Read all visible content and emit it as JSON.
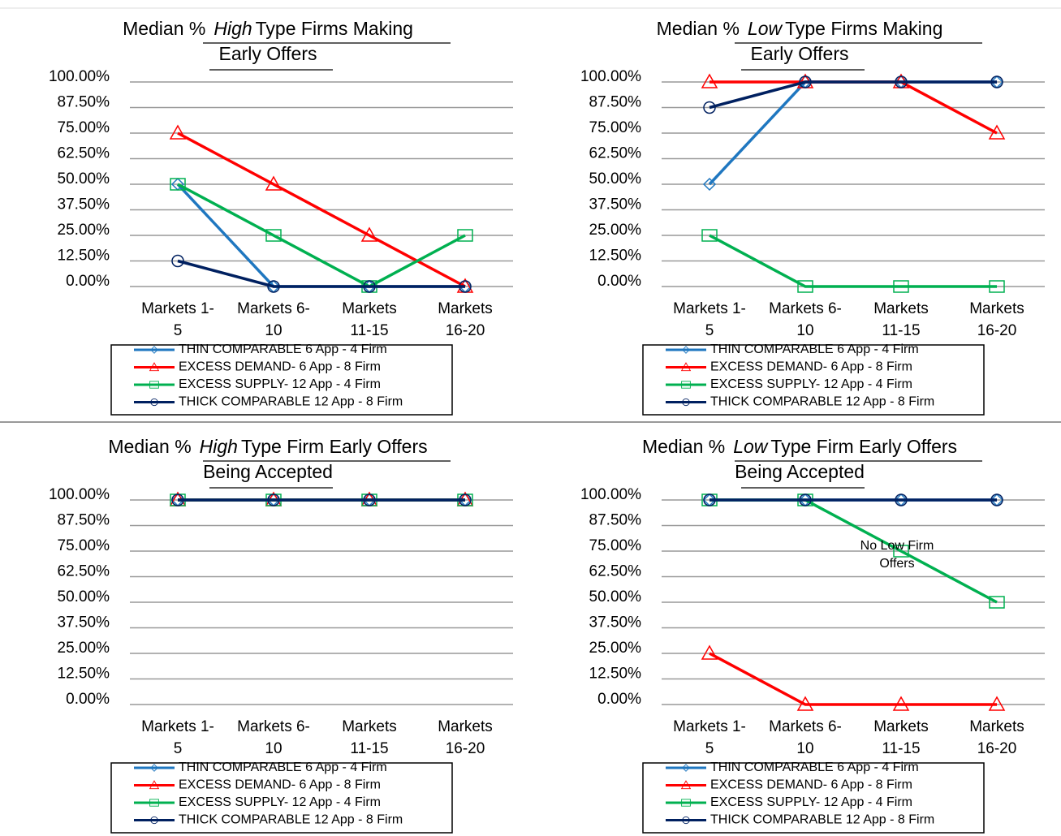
{
  "chart_data": [
    {
      "type": "line",
      "title": {
        "prefix": "Median %",
        "emphasis": "High",
        "rest": "Type  Firms Making",
        "line2": "Early Offers"
      },
      "categories": [
        [
          "Markets 1-",
          "5"
        ],
        [
          "Markets 6-",
          "10"
        ],
        [
          "Markets",
          "11-15"
        ],
        [
          "Markets",
          "16-20"
        ]
      ],
      "ylim": [
        0,
        100
      ],
      "yticks": [
        {
          "value": 0,
          "label": "0.00%"
        },
        {
          "value": 12.5,
          "label": "12.50%"
        },
        {
          "value": 25,
          "label": "25.00%"
        },
        {
          "value": 37.5,
          "label": "37.50%"
        },
        {
          "value": 50,
          "label": "50.00%"
        },
        {
          "value": 62.5,
          "label": "62.50%"
        },
        {
          "value": 75,
          "label": "75.00%"
        },
        {
          "value": 87.5,
          "label": "87.50%"
        },
        {
          "value": 100,
          "label": "100.00%"
        }
      ],
      "grid": true,
      "series": [
        {
          "name": "THIN COMPARABLE 6 App - 4 Firm",
          "color": "#1f77c0",
          "marker": "diamond",
          "values": [
            50,
            0,
            0,
            0
          ]
        },
        {
          "name": "EXCESS DEMAND- 6 App - 8 Firm",
          "color": "#ff0000",
          "marker": "triangle",
          "values": [
            75,
            50,
            25,
            0
          ]
        },
        {
          "name": "EXCESS SUPPLY- 12 App - 4 Firm",
          "color": "#00b050",
          "marker": "square",
          "values": [
            50,
            25,
            0,
            25
          ]
        },
        {
          "name": "THICK COMPARABLE 12 App - 8 Firm",
          "color": "#002060",
          "marker": "circle",
          "values": [
            12.5,
            0,
            0,
            0
          ]
        }
      ]
    },
    {
      "type": "line",
      "title": {
        "prefix": "Median %",
        "emphasis": "Low",
        "rest": "Type  Firms Making",
        "line2": "Early Offers"
      },
      "categories": [
        [
          "Markets 1-",
          "5"
        ],
        [
          "Markets 6-",
          "10"
        ],
        [
          "Markets",
          "11-15"
        ],
        [
          "Markets",
          "16-20"
        ]
      ],
      "ylim": [
        0,
        100
      ],
      "yticks": [
        {
          "value": 0,
          "label": "0.00%"
        },
        {
          "value": 12.5,
          "label": "12.50%"
        },
        {
          "value": 25,
          "label": "25.00%"
        },
        {
          "value": 37.5,
          "label": "37.50%"
        },
        {
          "value": 50,
          "label": "50.00%"
        },
        {
          "value": 62.5,
          "label": "62.50%"
        },
        {
          "value": 75,
          "label": "75.00%"
        },
        {
          "value": 87.5,
          "label": "87.50%"
        },
        {
          "value": 100,
          "label": "100.00%"
        }
      ],
      "grid": true,
      "series": [
        {
          "name": "THIN COMPARABLE 6 App - 4 Firm",
          "color": "#1f77c0",
          "marker": "diamond",
          "values": [
            50,
            100,
            100,
            100
          ]
        },
        {
          "name": "EXCESS DEMAND- 6 App - 8 Firm",
          "color": "#ff0000",
          "marker": "triangle",
          "values": [
            100,
            100,
            100,
            75
          ]
        },
        {
          "name": "EXCESS SUPPLY- 12 App - 4 Firm",
          "color": "#00b050",
          "marker": "square",
          "values": [
            25,
            0,
            0,
            0
          ]
        },
        {
          "name": "THICK COMPARABLE 12 App - 8 Firm",
          "color": "#002060",
          "marker": "circle",
          "values": [
            87.5,
            100,
            100,
            100
          ]
        }
      ]
    },
    {
      "type": "line",
      "title": {
        "prefix": "Median %",
        "emphasis": "High",
        "rest": "Type  Firm Early Offers",
        "line2": "Being Accepted"
      },
      "categories": [
        [
          "Markets 1-",
          "5"
        ],
        [
          "Markets 6-",
          "10"
        ],
        [
          "Markets",
          "11-15"
        ],
        [
          "Markets",
          "16-20"
        ]
      ],
      "ylim": [
        0,
        100
      ],
      "yticks": [
        {
          "value": 0,
          "label": "0.00%"
        },
        {
          "value": 12.5,
          "label": "12.50%"
        },
        {
          "value": 25,
          "label": "25.00%"
        },
        {
          "value": 37.5,
          "label": "37.50%"
        },
        {
          "value": 50,
          "label": "50.00%"
        },
        {
          "value": 62.5,
          "label": "62.50%"
        },
        {
          "value": 75,
          "label": "75.00%"
        },
        {
          "value": 87.5,
          "label": "87.50%"
        },
        {
          "value": 100,
          "label": "100.00%"
        }
      ],
      "grid": true,
      "series": [
        {
          "name": "THIN COMPARABLE 6 App - 4 Firm",
          "color": "#1f77c0",
          "marker": "diamond",
          "values": [
            100,
            100,
            100,
            100
          ]
        },
        {
          "name": "EXCESS DEMAND- 6 App - 8 Firm",
          "color": "#ff0000",
          "marker": "triangle",
          "values": [
            100,
            100,
            100,
            100
          ]
        },
        {
          "name": "EXCESS SUPPLY- 12 App - 4 Firm",
          "color": "#00b050",
          "marker": "square",
          "values": [
            100,
            100,
            100,
            100
          ]
        },
        {
          "name": "THICK COMPARABLE 12 App - 8 Firm",
          "color": "#002060",
          "marker": "circle",
          "values": [
            100,
            100,
            100,
            100
          ]
        }
      ]
    },
    {
      "type": "line",
      "title": {
        "prefix": "Median %",
        "emphasis": "Low",
        "rest": "Type  Firm Early Offers",
        "line2": "Being Accepted"
      },
      "categories": [
        [
          "Markets 1-",
          "5"
        ],
        [
          "Markets 6-",
          "10"
        ],
        [
          "Markets",
          "11-15"
        ],
        [
          "Markets",
          "16-20"
        ]
      ],
      "ylim": [
        0,
        100
      ],
      "yticks": [
        {
          "value": 0,
          "label": "0.00%"
        },
        {
          "value": 12.5,
          "label": "12.50%"
        },
        {
          "value": 25,
          "label": "25.00%"
        },
        {
          "value": 37.5,
          "label": "37.50%"
        },
        {
          "value": 50,
          "label": "50.00%"
        },
        {
          "value": 62.5,
          "label": "62.50%"
        },
        {
          "value": 75,
          "label": "75.00%"
        },
        {
          "value": 87.5,
          "label": "87.50%"
        },
        {
          "value": 100,
          "label": "100.00%"
        }
      ],
      "grid": true,
      "annotation": [
        "No Low Firm",
        "Offers"
      ],
      "series": [
        {
          "name": "THIN COMPARABLE 6 App - 4 Firm",
          "color": "#1f77c0",
          "marker": "diamond",
          "values": [
            100,
            100,
            100,
            100
          ]
        },
        {
          "name": "EXCESS DEMAND- 6 App - 8 Firm",
          "color": "#ff0000",
          "marker": "triangle",
          "values": [
            25,
            0,
            0,
            0
          ]
        },
        {
          "name": "EXCESS SUPPLY- 12 App - 4 Firm",
          "color": "#00b050",
          "marker": "square",
          "values": [
            100,
            100,
            75,
            50
          ]
        },
        {
          "name": "THICK COMPARABLE 12 App - 8 Firm",
          "color": "#002060",
          "marker": "circle",
          "values": [
            100,
            100,
            100,
            100
          ]
        }
      ]
    }
  ]
}
